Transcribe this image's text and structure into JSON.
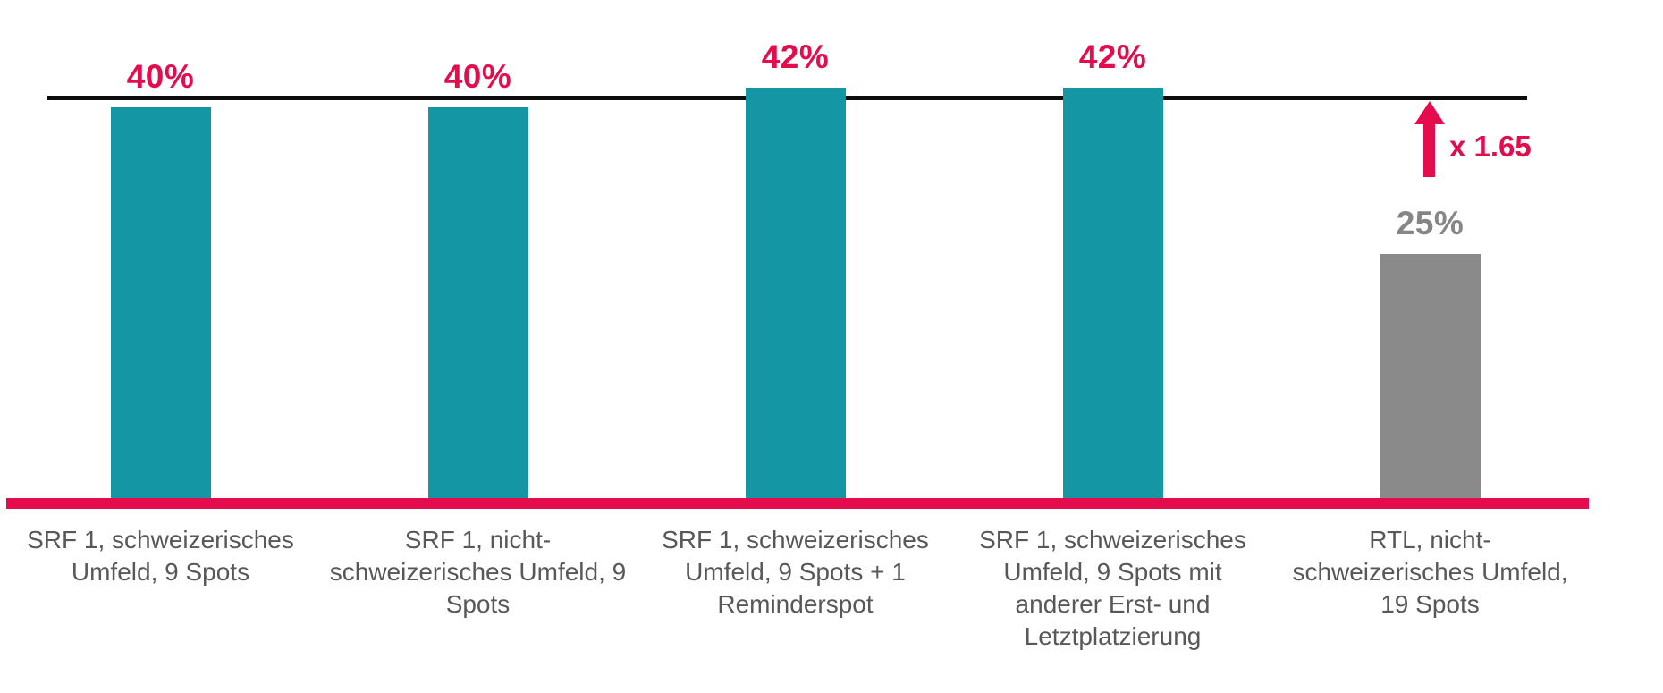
{
  "chart_data": {
    "type": "bar",
    "title": "",
    "xlabel": "",
    "ylabel": "",
    "ylim": [
      0,
      51
    ],
    "grid": false,
    "legend": false,
    "categories": [
      "SRF 1, schweizerisches\nUmfeld, 9 Spots",
      "SRF 1, nicht-\nschweizerisches Umfeld, 9\nSpots",
      "SRF 1, schweizerisches\nUmfeld, 9 Spots + 1\nReminderspot",
      "SRF 1, schweizerisches\nUmfeld, 9 Spots mit\nanderer Erst- und\nLetztplatzierung",
      "RTL, nicht-\nschweizerisches Umfeld,\n19 Spots"
    ],
    "values": [
      40,
      40,
      42,
      42,
      25
    ],
    "value_labels": [
      "40%",
      "40%",
      "42%",
      "42%",
      "25%"
    ],
    "bar_colors": [
      "#1496A5",
      "#1496A5",
      "#1496A5",
      "#1496A5",
      "#8A8A8A"
    ],
    "value_label_colors": [
      "#E50C4D",
      "#E50C4D",
      "#E50C4D",
      "#E50C4D",
      "#868686"
    ],
    "benchmark_line": {
      "value": 40,
      "color": "#0d0d0d"
    },
    "annotation": {
      "label": "x 1.65",
      "color": "#E50C4D"
    }
  },
  "colors": {
    "teal": "#1496A5",
    "pink": "#E50C4D",
    "gray_bar": "#8A8A8A",
    "gray_value_label": "#868686",
    "text_gray": "#58585B",
    "benchmark_black": "#0d0d0d",
    "background": "#ffffff"
  }
}
